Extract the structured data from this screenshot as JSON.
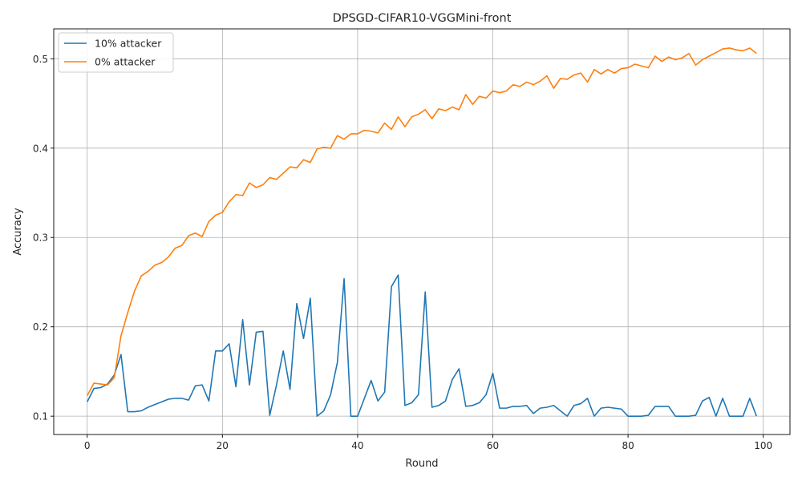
{
  "chart_data": {
    "type": "line",
    "title": "DPSGD-CIFAR10-VGGMini-front",
    "xlabel": "Round",
    "ylabel": "Accuracy",
    "xlim": [
      -4.95,
      103.95
    ],
    "ylim": [
      0.0795,
      0.5335
    ],
    "xticks": [
      0,
      20,
      40,
      60,
      80,
      100
    ],
    "yticks": [
      0.1,
      0.2,
      0.3,
      0.4,
      0.5
    ],
    "ytick_labels": [
      "0.1",
      "0.2",
      "0.3",
      "0.4",
      "0.5"
    ],
    "grid": true,
    "legend": "upper-left",
    "series": [
      {
        "name": "10% attacker",
        "color": "#1f77b4",
        "values": [
          0.116,
          0.131,
          0.132,
          0.136,
          0.146,
          0.169,
          0.105,
          0.105,
          0.106,
          0.11,
          0.113,
          0.116,
          0.119,
          0.12,
          0.12,
          0.118,
          0.134,
          0.135,
          0.117,
          0.173,
          0.173,
          0.181,
          0.133,
          0.208,
          0.135,
          0.194,
          0.195,
          0.101,
          0.135,
          0.173,
          0.13,
          0.226,
          0.187,
          0.232,
          0.1,
          0.106,
          0.124,
          0.16,
          0.254,
          0.1,
          0.1,
          0.12,
          0.14,
          0.117,
          0.127,
          0.245,
          0.258,
          0.112,
          0.115,
          0.124,
          0.239,
          0.11,
          0.112,
          0.117,
          0.141,
          0.153,
          0.111,
          0.112,
          0.115,
          0.124,
          0.148,
          0.109,
          0.109,
          0.111,
          0.111,
          0.112,
          0.103,
          0.109,
          0.11,
          0.112,
          0.106,
          0.1,
          0.112,
          0.114,
          0.12,
          0.1,
          0.109,
          0.11,
          0.109,
          0.108,
          0.1,
          0.1,
          0.1,
          0.101,
          0.111,
          0.111,
          0.111,
          0.1,
          0.1,
          0.1,
          0.101,
          0.117,
          0.121,
          0.1,
          0.12,
          0.1,
          0.1,
          0.1,
          0.12,
          0.1
        ]
      },
      {
        "name": "0% attacker",
        "color": "#ff7f0e",
        "values": [
          0.123,
          0.137,
          0.136,
          0.135,
          0.143,
          0.19,
          0.216,
          0.24,
          0.257,
          0.262,
          0.269,
          0.272,
          0.278,
          0.288,
          0.291,
          0.302,
          0.305,
          0.301,
          0.318,
          0.325,
          0.328,
          0.34,
          0.348,
          0.347,
          0.361,
          0.356,
          0.359,
          0.367,
          0.365,
          0.372,
          0.379,
          0.378,
          0.387,
          0.384,
          0.399,
          0.401,
          0.4,
          0.414,
          0.41,
          0.416,
          0.416,
          0.42,
          0.419,
          0.417,
          0.428,
          0.421,
          0.435,
          0.424,
          0.435,
          0.438,
          0.443,
          0.433,
          0.444,
          0.442,
          0.446,
          0.443,
          0.46,
          0.449,
          0.458,
          0.456,
          0.464,
          0.462,
          0.464,
          0.471,
          0.469,
          0.474,
          0.471,
          0.475,
          0.481,
          0.467,
          0.478,
          0.477,
          0.482,
          0.484,
          0.474,
          0.488,
          0.483,
          0.488,
          0.484,
          0.489,
          0.49,
          0.494,
          0.492,
          0.49,
          0.503,
          0.497,
          0.502,
          0.499,
          0.501,
          0.506,
          0.493,
          0.499,
          0.503,
          0.507,
          0.511,
          0.512,
          0.51,
          0.509,
          0.512,
          0.506
        ]
      }
    ]
  }
}
